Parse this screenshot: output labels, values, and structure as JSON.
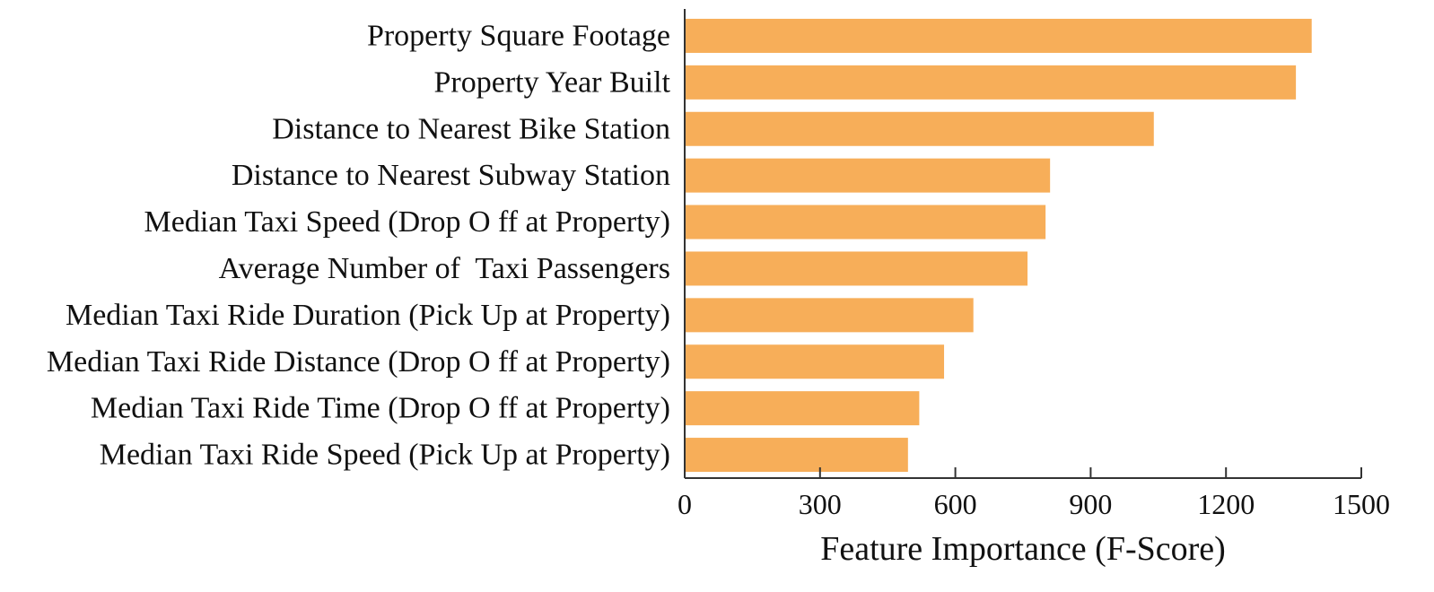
{
  "chart_data": {
    "type": "bar",
    "orientation": "horizontal",
    "title": "",
    "xlabel": "Feature Importance (F-Score)",
    "ylabel": "",
    "xlim": [
      0,
      1500
    ],
    "xticks": [
      0,
      300,
      600,
      900,
      1200,
      1500
    ],
    "grid": false,
    "bar_color": "#F7AE59",
    "categories": [
      "Property Square Footage",
      "Property Year Built",
      "Distance to Nearest Bike Station",
      "Distance to Nearest Subway Station",
      "Median Taxi Speed (Drop O ff at Property)",
      "Average Number of  Taxi Passengers",
      "Median Taxi Ride Duration (Pick Up at Property)",
      "Median Taxi Ride Distance (Drop O ff at Property)",
      "Median Taxi Ride Time (Drop O ff at Property)",
      "Median Taxi Ride Speed (Pick Up at Property)"
    ],
    "values": [
      1390,
      1355,
      1040,
      810,
      800,
      760,
      640,
      575,
      520,
      495
    ]
  }
}
